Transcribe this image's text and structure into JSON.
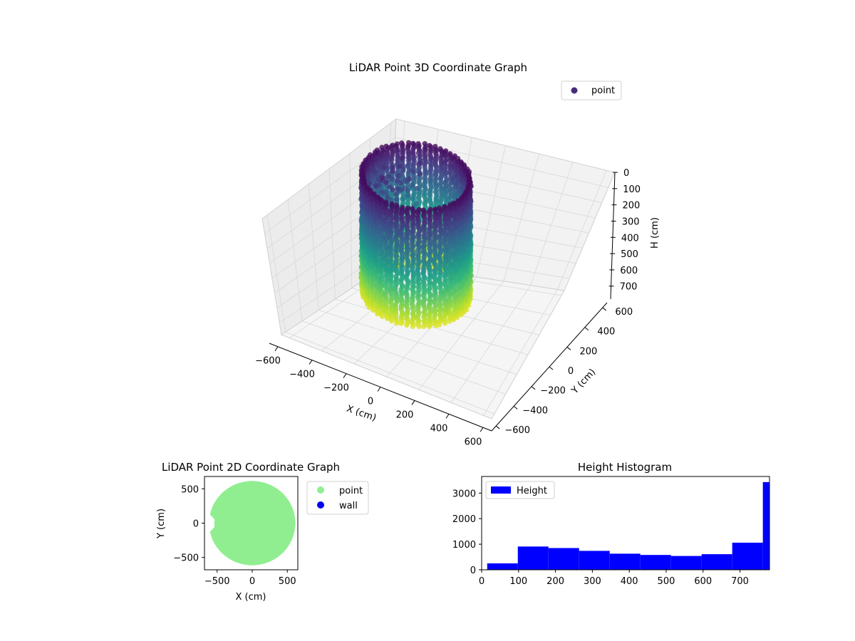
{
  "chart_data": [
    {
      "type": "scatter",
      "title": "LiDAR Point 3D Coordinate Graph",
      "xlabel": "X (cm)",
      "ylabel": "Y (cm)",
      "zlabel": "H (cm)",
      "x_ticks": [
        "−600",
        "−400",
        "−200",
        "0",
        "200",
        "400",
        "600"
      ],
      "y_ticks": [
        "−600",
        "−400",
        "−200",
        "0",
        "200",
        "400",
        "600"
      ],
      "z_ticks": [
        "0",
        "100",
        "200",
        "300",
        "400",
        "500",
        "600",
        "700"
      ],
      "xlim": [
        -650,
        650
      ],
      "ylim": [
        -650,
        650
      ],
      "zlim": [
        0,
        780
      ],
      "z_inverted": true,
      "legend": [
        {
          "label": "point",
          "color": "#472c7a"
        }
      ],
      "legend_position": "top-right",
      "colormap": "viridis",
      "grid": true
    },
    {
      "type": "scatter",
      "title": "LiDAR Point 2D Coordinate Graph",
      "xlabel": "X (cm)",
      "ylabel": "Y (cm)",
      "x_ticks": [
        "−500",
        "0",
        "500"
      ],
      "y_ticks": [
        "500",
        "0",
        "−500"
      ],
      "xlim": [
        -680,
        650
      ],
      "ylim": [
        -680,
        680
      ],
      "legend": [
        {
          "label": "point",
          "color": "#90ee90"
        },
        {
          "label": "wall",
          "color": "#0000ee"
        }
      ],
      "legend_position": "outside-right"
    },
    {
      "type": "bar",
      "title": "Height Histogram",
      "legend": [
        {
          "label": "Height",
          "color": "#0000ff"
        }
      ],
      "legend_position": "top-left",
      "x_ticks": [
        "0",
        "100",
        "200",
        "300",
        "400",
        "500",
        "600",
        "700"
      ],
      "y_ticks": [
        "0",
        "1000",
        "2000",
        "3000"
      ],
      "xlim": [
        0,
        780
      ],
      "ylim": [
        0,
        3650
      ],
      "bins": [
        {
          "x0": 15,
          "x1": 98,
          "value": 250
        },
        {
          "x0": 98,
          "x1": 181,
          "value": 910
        },
        {
          "x0": 181,
          "x1": 264,
          "value": 850
        },
        {
          "x0": 264,
          "x1": 347,
          "value": 740
        },
        {
          "x0": 347,
          "x1": 430,
          "value": 630
        },
        {
          "x0": 430,
          "x1": 513,
          "value": 580
        },
        {
          "x0": 513,
          "x1": 596,
          "value": 540
        },
        {
          "x0": 596,
          "x1": 679,
          "value": 610
        },
        {
          "x0": 679,
          "x1": 762,
          "value": 1060
        },
        {
          "x0": 762,
          "x1": 780,
          "value": 3430
        }
      ],
      "color": "#0000ff"
    }
  ]
}
